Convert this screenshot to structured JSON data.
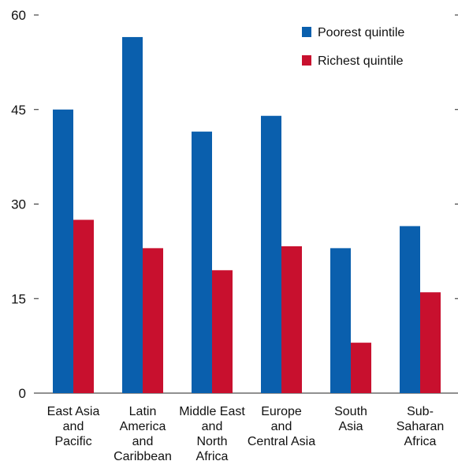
{
  "chart_data": {
    "type": "bar",
    "title": "",
    "xlabel": "",
    "ylabel": "",
    "ylim": [
      0,
      60
    ],
    "yticks": [
      0,
      15,
      30,
      45,
      60
    ],
    "grid": false,
    "legend_position": "top-right",
    "categories": [
      [
        "East Asia",
        "and",
        "Pacific"
      ],
      [
        "Latin",
        "America",
        "and",
        "Caribbean"
      ],
      [
        "Middle East",
        "and",
        "North",
        "Africa"
      ],
      [
        "Europe",
        "and",
        "Central Asia"
      ],
      [
        "South",
        "Asia"
      ],
      [
        "Sub-",
        "Saharan",
        "Africa"
      ]
    ],
    "series": [
      {
        "name": "Poorest quintile",
        "color": "#0a5fad",
        "values": [
          45,
          56.5,
          41.5,
          44,
          23,
          26.5
        ]
      },
      {
        "name": "Richest quintile",
        "color": "#c8102e",
        "values": [
          27.5,
          23,
          19.5,
          23.3,
          8,
          16
        ]
      }
    ]
  }
}
